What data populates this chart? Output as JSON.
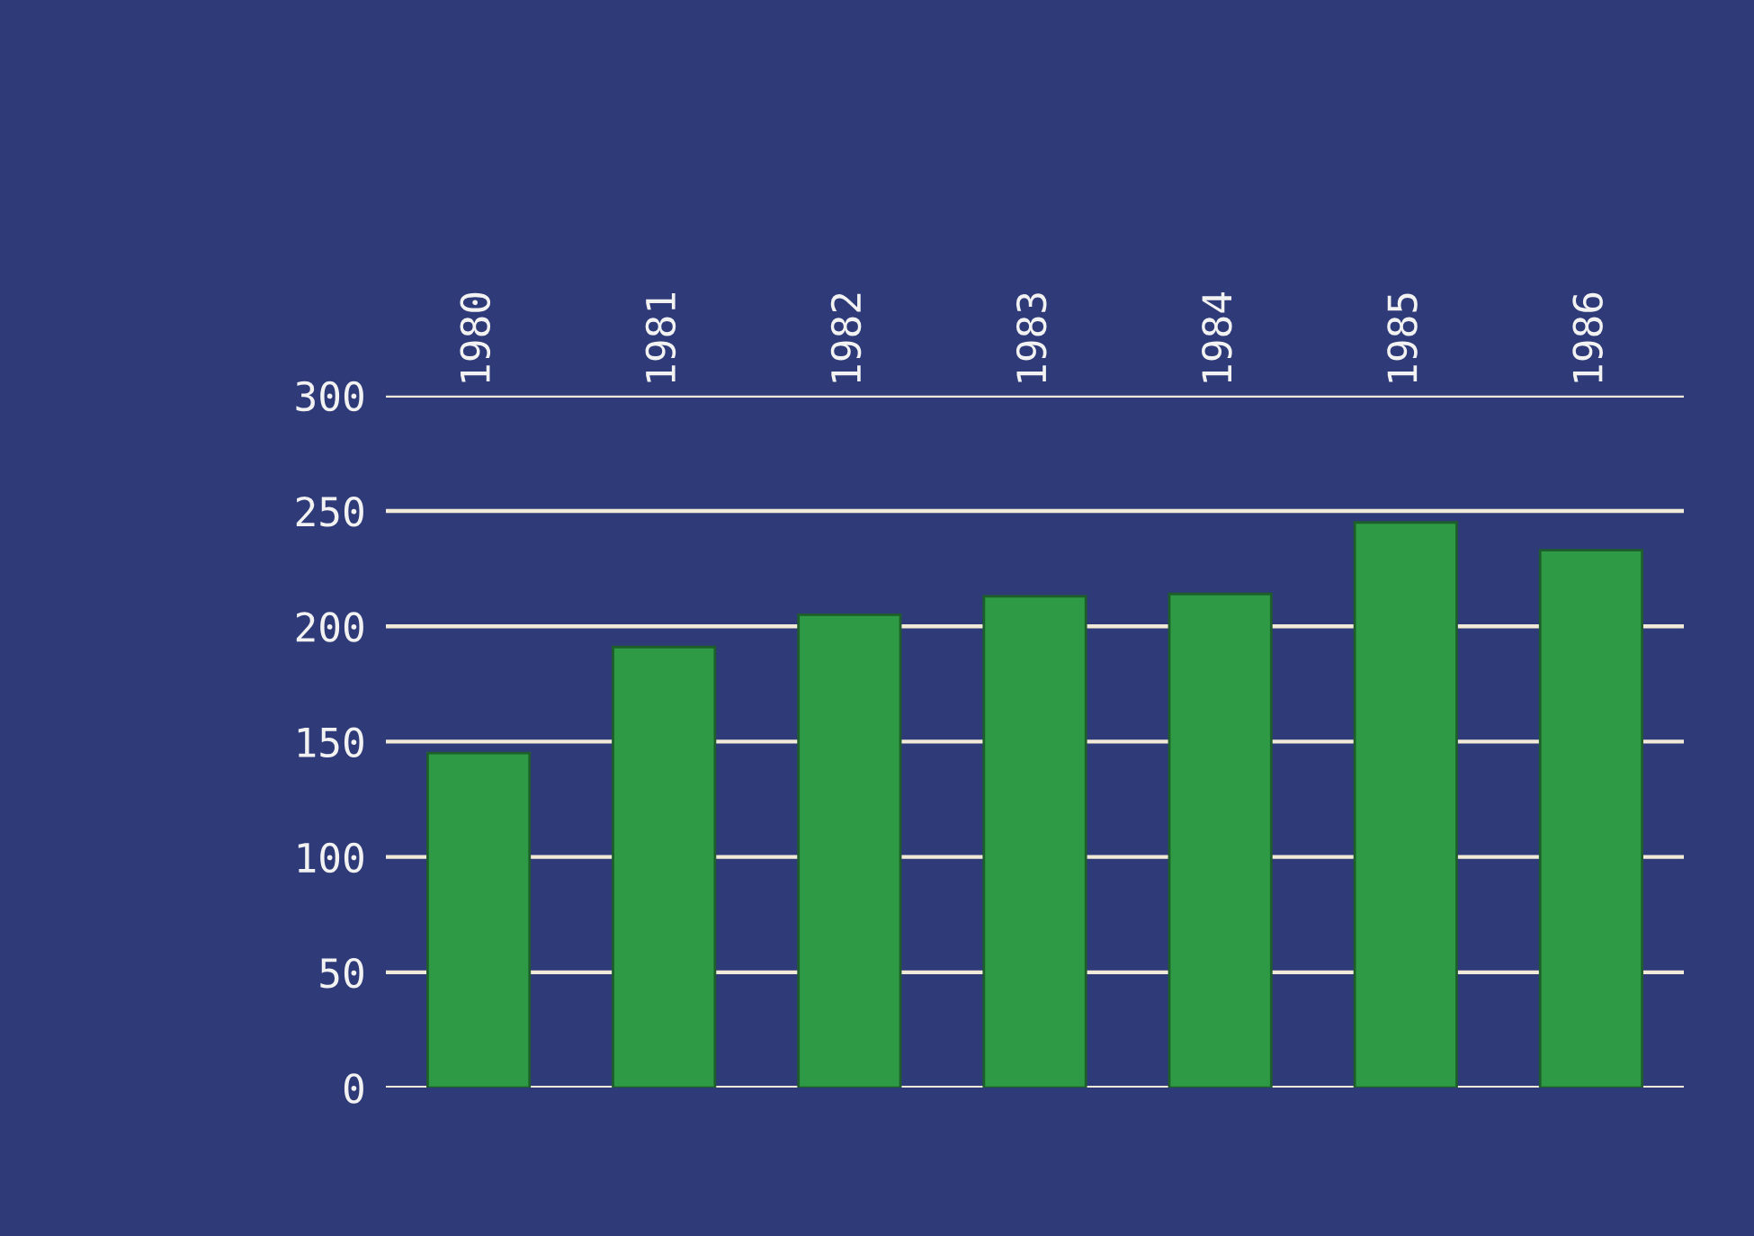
{
  "chart_data": {
    "type": "bar",
    "categories": [
      "1980",
      "1981",
      "1982",
      "1983",
      "1984",
      "1985",
      "1986"
    ],
    "values": [
      145,
      191,
      205,
      213,
      214,
      245,
      233
    ],
    "color": "#2e9a46",
    "ylim": [
      0,
      300
    ],
    "yticks": [
      0,
      50,
      100,
      150,
      200,
      250,
      300
    ],
    "grid": "y"
  }
}
